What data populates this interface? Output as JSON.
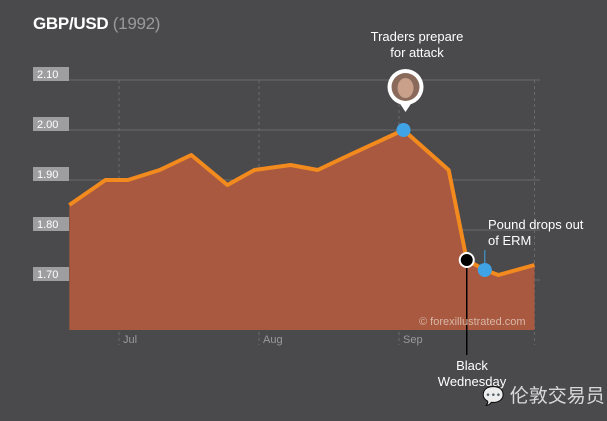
{
  "title": "GBP/USD",
  "subtitle": "(1992)",
  "watermark_credit": "© forexillustrated.com",
  "watermark_wechat": "伦敦交易员",
  "colors": {
    "background": "#4a494b",
    "area": "#a8593f",
    "line": "#f28a1e",
    "highlight_dot": "#3fa3e6",
    "event_dot": "#000000"
  },
  "chart_data": {
    "type": "area",
    "title": "GBP/USD",
    "subtitle": "(1992)",
    "x_ticks": [
      "Jul",
      "Aug",
      "Sep"
    ],
    "y_ticks": [
      "2.10",
      "2.00",
      "1.90",
      "1.80",
      "1.70"
    ],
    "ylim": [
      1.6,
      2.1
    ],
    "grid": true,
    "points": [
      {
        "date": "1992-06-20",
        "value": 1.85
      },
      {
        "date": "1992-06-28",
        "value": 1.9
      },
      {
        "date": "1992-07-03",
        "value": 1.9
      },
      {
        "date": "1992-07-10",
        "value": 1.92
      },
      {
        "date": "1992-07-17",
        "value": 1.95
      },
      {
        "date": "1992-07-25",
        "value": 1.89
      },
      {
        "date": "1992-07-31",
        "value": 1.92
      },
      {
        "date": "1992-08-08",
        "value": 1.93
      },
      {
        "date": "1992-08-14",
        "value": 1.92
      },
      {
        "date": "1992-08-21",
        "value": 1.95
      },
      {
        "date": "1992-09-02",
        "value": 2.0
      },
      {
        "date": "1992-09-12",
        "value": 1.92
      },
      {
        "date": "1992-09-16",
        "value": 1.74
      },
      {
        "date": "1992-09-20",
        "value": 1.72
      },
      {
        "date": "1992-09-23",
        "value": 1.71
      },
      {
        "date": "1992-10-01",
        "value": 1.73
      }
    ],
    "annotations": [
      {
        "date": "1992-09-02",
        "value": 2.0,
        "text": [
          "Traders prepare",
          "for attack"
        ],
        "marker": "blue-with-portrait"
      },
      {
        "date": "1992-09-16",
        "value": 1.74,
        "text": [
          "Black",
          "Wednesday"
        ],
        "marker": "black"
      },
      {
        "date": "1992-09-20",
        "value": 1.72,
        "text": [
          "Pound drops out",
          "of ERM"
        ],
        "marker": "blue"
      }
    ]
  }
}
